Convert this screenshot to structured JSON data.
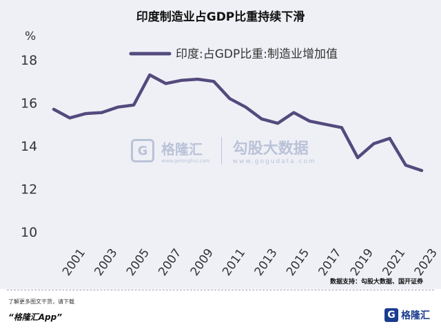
{
  "chart_data": {
    "type": "line",
    "title": "印度制造业占GDP比重持续下滑",
    "y_unit": "%",
    "xlabel": "",
    "ylabel": "",
    "ylim": [
      10,
      19.5
    ],
    "yticks": [
      10,
      12,
      14,
      16,
      18
    ],
    "xticks": [
      2001,
      2003,
      2005,
      2007,
      2009,
      2011,
      2013,
      2015,
      2017,
      2019,
      2021,
      2023
    ],
    "legend": "top",
    "grid": false,
    "series": [
      {
        "name": "印度:占GDP比重:制造业增加值",
        "color": "#544a7d",
        "x": [
          2000,
          2001,
          2002,
          2003,
          2004,
          2005,
          2006,
          2007,
          2008,
          2009,
          2010,
          2011,
          2012,
          2013,
          2014,
          2015,
          2016,
          2017,
          2018,
          2019,
          2020,
          2021,
          2022,
          2023
        ],
        "values": [
          15.7,
          15.3,
          15.5,
          15.55,
          15.8,
          15.9,
          17.3,
          16.9,
          17.05,
          17.1,
          17.0,
          16.2,
          15.8,
          15.25,
          15.05,
          15.55,
          15.15,
          15.0,
          14.85,
          13.45,
          14.1,
          14.35,
          13.1,
          12.85
        ]
      }
    ]
  },
  "watermark": {
    "left_name": "格隆汇",
    "left_url": "www.gelonghui.com",
    "right_name": "勾股大数据",
    "right_url": "www.gogudata.com"
  },
  "footer": {
    "source": "数据支持：勾股大数据、国开证券",
    "tip": "了解更多图文干货，请下载",
    "app": "“格隆汇App”",
    "logo_glyph": "G",
    "logo_text": "格隆汇"
  }
}
